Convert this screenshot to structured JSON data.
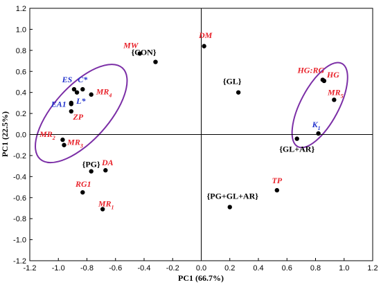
{
  "chart_data": {
    "type": "scatter",
    "xlabel": "PC1 (66.7%)",
    "ylabel": "PC1 (22.5%)",
    "xlim": [
      -1.2,
      1.2
    ],
    "ylim": [
      -1.2,
      1.2
    ],
    "x_ticks": [
      "-1.2",
      "-1.0",
      "-0.8",
      "-0.6",
      "-0.4",
      "-0.2",
      "0.0",
      "0.2",
      "0.4",
      "0.6",
      "0.8",
      "1.0",
      "1.2"
    ],
    "y_ticks": [
      "1.2",
      "1.0",
      "0.8",
      "0.6",
      "0.4",
      "0.2",
      "0.0",
      "-0.2",
      "-0.4",
      "-0.6",
      "-0.8",
      "-1.0",
      "-1.2"
    ],
    "reference_lines": {
      "x": 0.0,
      "y": 0.0
    },
    "colors": {
      "red": "#e8222a",
      "blue": "#2233cc",
      "black": "#000000",
      "ellipse": "#7b2ea6"
    },
    "points": [
      {
        "label": "MW",
        "sub": "",
        "x": -0.43,
        "y": 0.77,
        "color": "red",
        "italic": true
      },
      {
        "label": "{CON}",
        "sub": "",
        "x": -0.32,
        "y": 0.69,
        "color": "black",
        "italic": false
      },
      {
        "label": "DM",
        "sub": "",
        "x": 0.02,
        "y": 0.84,
        "color": "red",
        "italic": true
      },
      {
        "label": "C*",
        "sub": "",
        "x": -0.83,
        "y": 0.43,
        "color": "blue",
        "italic": true
      },
      {
        "label": "ES",
        "sub": "",
        "x": -0.89,
        "y": 0.43,
        "color": "blue",
        "italic": true
      },
      {
        "label": "MR",
        "sub": "4",
        "x": -0.77,
        "y": 0.38,
        "color": "red",
        "italic": true
      },
      {
        "label": "",
        "sub": "",
        "x": -0.87,
        "y": 0.4,
        "color": "none",
        "italic": false
      },
      {
        "label": "L*",
        "sub": "",
        "x": -0.91,
        "y": 0.3,
        "color": "blue",
        "italic": true
      },
      {
        "label": "EA1",
        "sub": "",
        "x": -0.91,
        "y": 0.29,
        "color": "blue",
        "italic": true
      },
      {
        "label": "ZP",
        "sub": "",
        "x": -0.91,
        "y": 0.22,
        "color": "red",
        "italic": true
      },
      {
        "label": "MR",
        "sub": "2",
        "x": -0.97,
        "y": -0.05,
        "color": "red",
        "italic": true
      },
      {
        "label": "MR",
        "sub": "3",
        "x": -0.96,
        "y": -0.1,
        "color": "red",
        "italic": true
      },
      {
        "label": "{GL}",
        "sub": "",
        "x": 0.26,
        "y": 0.4,
        "color": "black",
        "italic": false
      },
      {
        "label": "HG:RG",
        "sub": "",
        "x": 0.85,
        "y": 0.52,
        "color": "red",
        "italic": true
      },
      {
        "label": "HG",
        "sub": "",
        "x": 0.86,
        "y": 0.51,
        "color": "red",
        "italic": true
      },
      {
        "label": "MR",
        "sub": "5",
        "x": 0.93,
        "y": 0.33,
        "color": "red",
        "italic": true
      },
      {
        "label": "K",
        "sub": "1",
        "x": 0.82,
        "y": 0.01,
        "color": "blue",
        "italic": true
      },
      {
        "label": "{GL+AR}",
        "sub": "",
        "x": 0.67,
        "y": -0.04,
        "color": "black",
        "italic": false
      },
      {
        "label": "{PG}",
        "sub": "",
        "x": -0.77,
        "y": -0.35,
        "color": "black",
        "italic": false
      },
      {
        "label": "DA",
        "sub": "",
        "x": -0.67,
        "y": -0.34,
        "color": "red",
        "italic": true
      },
      {
        "label": "RG1",
        "sub": "",
        "x": -0.83,
        "y": -0.55,
        "color": "red",
        "italic": true
      },
      {
        "label": "MR",
        "sub": "1",
        "x": -0.69,
        "y": -0.71,
        "color": "red",
        "italic": true
      },
      {
        "label": "TP",
        "sub": "",
        "x": 0.53,
        "y": -0.53,
        "color": "red",
        "italic": true
      },
      {
        "label": "{PG+GL+AR}",
        "sub": "",
        "x": 0.2,
        "y": -0.69,
        "color": "black",
        "italic": false
      }
    ],
    "ellipses": [
      {
        "cx": -0.84,
        "cy": 0.2,
        "rx": 0.43,
        "ry": 0.26,
        "rotate_deg": 48
      },
      {
        "cx": 0.83,
        "cy": 0.28,
        "rx": 0.33,
        "ry": 0.18,
        "rotate_deg": 62
      }
    ]
  }
}
